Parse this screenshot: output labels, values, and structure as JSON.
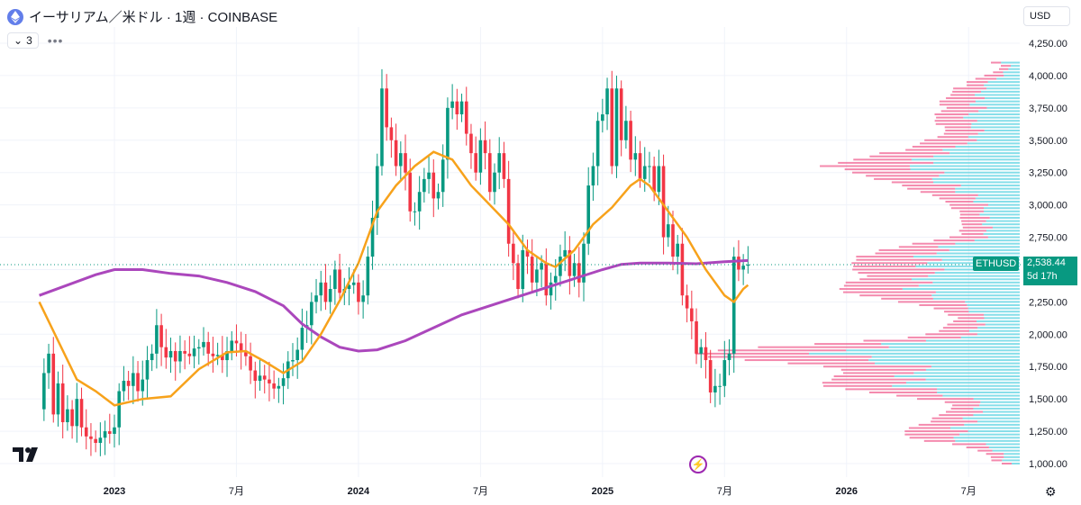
{
  "header": {
    "title": "イーサリアム／米ドル · 1週 · COINBASE",
    "indicator_count": "3",
    "currency": "USD",
    "symbol_tag": "ETHUSD",
    "last_price": "2,538.44",
    "countdown": "5d 17h"
  },
  "colors": {
    "up": "#089981",
    "down": "#f23645",
    "ma_fast": "#f7a21b",
    "ma_slow": "#ab47bc",
    "vp_up": "#5dd3e2",
    "vp_down": "#f06292"
  },
  "chart_data": {
    "type": "candlestick",
    "y_ticks": [
      "4,250.00",
      "4,000.00",
      "3,750.00",
      "3,500.00",
      "3,250.00",
      "3,000.00",
      "2,750.00",
      "2,500.00",
      "2,250.00",
      "2,000.00",
      "1,750.00",
      "1,500.00",
      "1,250.00",
      "1,000.00"
    ],
    "y_tick_values": [
      4250,
      4000,
      3750,
      3500,
      3250,
      3000,
      2750,
      2500,
      2250,
      2000,
      1750,
      1500,
      1250,
      1000
    ],
    "x_ticks": [
      {
        "label": "2023",
        "w": 0
      },
      {
        "label": "7月",
        "w": 26
      },
      {
        "label": "2024",
        "w": 52
      },
      {
        "label": "7月",
        "w": 78
      },
      {
        "label": "2025",
        "w": 104
      },
      {
        "label": "7月",
        "w": 130
      },
      {
        "label": "2026",
        "w": 156
      },
      {
        "label": "7月",
        "w": 182
      }
    ],
    "last_price": 2538.44,
    "candles_anchor": [
      [
        -16,
        1420
      ],
      [
        -15,
        1700
      ],
      [
        -14,
        1850
      ],
      [
        -13,
        1380
      ],
      [
        -12,
        1620
      ],
      [
        -11,
        1320
      ],
      [
        -10,
        1420
      ],
      [
        -9,
        1290
      ],
      [
        -8,
        1500
      ],
      [
        -7,
        1280
      ],
      [
        -6,
        1210
      ],
      [
        -5,
        1190
      ],
      [
        -4,
        1160
      ],
      [
        -3,
        1200
      ],
      [
        -2,
        1250
      ],
      [
        -1,
        1230
      ],
      [
        0,
        1280
      ],
      [
        1,
        1560
      ],
      [
        2,
        1640
      ],
      [
        3,
        1600
      ],
      [
        4,
        1700
      ],
      [
        5,
        1560
      ],
      [
        6,
        1650
      ],
      [
        7,
        1800
      ],
      [
        8,
        1850
      ],
      [
        9,
        2070
      ],
      [
        10,
        1900
      ],
      [
        11,
        1820
      ],
      [
        12,
        1870
      ],
      [
        13,
        1790
      ],
      [
        14,
        1870
      ],
      [
        15,
        1850
      ],
      [
        16,
        1830
      ],
      [
        17,
        1890
      ],
      [
        18,
        1900
      ],
      [
        19,
        1940
      ],
      [
        20,
        1850
      ],
      [
        21,
        1830
      ],
      [
        22,
        1840
      ],
      [
        23,
        1800
      ],
      [
        24,
        1870
      ],
      [
        25,
        1950
      ],
      [
        26,
        1930
      ],
      [
        27,
        1860
      ],
      [
        28,
        1830
      ],
      [
        29,
        1720
      ],
      [
        30,
        1640
      ],
      [
        31,
        1680
      ],
      [
        32,
        1650
      ],
      [
        33,
        1620
      ],
      [
        34,
        1580
      ],
      [
        35,
        1600
      ],
      [
        36,
        1660
      ],
      [
        37,
        1790
      ],
      [
        38,
        1800
      ],
      [
        39,
        1880
      ],
      [
        40,
        2050
      ],
      [
        41,
        2070
      ],
      [
        42,
        2250
      ],
      [
        43,
        2300
      ],
      [
        44,
        2400
      ],
      [
        45,
        2250
      ],
      [
        46,
        2350
      ],
      [
        47,
        2500
      ],
      [
        48,
        2320
      ],
      [
        49,
        2350
      ],
      [
        50,
        2380
      ],
      [
        51,
        2400
      ],
      [
        52,
        2250
      ],
      [
        53,
        2300
      ],
      [
        54,
        2600
      ],
      [
        55,
        2900
      ],
      [
        56,
        3300
      ],
      [
        57,
        3900
      ],
      [
        58,
        3600
      ],
      [
        59,
        3500
      ],
      [
        60,
        3300
      ],
      [
        61,
        3400
      ],
      [
        62,
        3250
      ],
      [
        63,
        2950
      ],
      [
        64,
        2950
      ],
      [
        65,
        3100
      ],
      [
        66,
        3200
      ],
      [
        67,
        3250
      ],
      [
        68,
        3050
      ],
      [
        69,
        3100
      ],
      [
        70,
        3350
      ],
      [
        71,
        3750
      ],
      [
        72,
        3800
      ],
      [
        73,
        3700
      ],
      [
        74,
        3800
      ],
      [
        75,
        3550
      ],
      [
        76,
        3400
      ],
      [
        77,
        3250
      ],
      [
        78,
        3500
      ],
      [
        79,
        3400
      ],
      [
        80,
        3100
      ],
      [
        81,
        3250
      ],
      [
        82,
        3400
      ],
      [
        83,
        3200
      ],
      [
        84,
        2700
      ],
      [
        85,
        2550
      ],
      [
        86,
        2350
      ],
      [
        87,
        2650
      ],
      [
        88,
        2600
      ],
      [
        89,
        2400
      ],
      [
        90,
        2500
      ],
      [
        91,
        2550
      ],
      [
        92,
        2300
      ],
      [
        93,
        2400
      ],
      [
        94,
        2450
      ],
      [
        95,
        2600
      ],
      [
        96,
        2650
      ],
      [
        97,
        2450
      ],
      [
        98,
        2550
      ],
      [
        99,
        2400
      ],
      [
        100,
        2700
      ],
      [
        101,
        3150
      ],
      [
        102,
        3300
      ],
      [
        103,
        3650
      ],
      [
        104,
        3700
      ],
      [
        105,
        3900
      ],
      [
        106,
        3300
      ],
      [
        107,
        3900
      ],
      [
        108,
        3500
      ],
      [
        109,
        3650
      ],
      [
        110,
        3350
      ],
      [
        111,
        3400
      ],
      [
        112,
        3200
      ],
      [
        113,
        3300
      ],
      [
        114,
        3300
      ],
      [
        115,
        3100
      ],
      [
        116,
        3300
      ],
      [
        117,
        2750
      ],
      [
        118,
        2850
      ],
      [
        119,
        2600
      ],
      [
        120,
        2700
      ],
      [
        121,
        2300
      ],
      [
        122,
        2200
      ],
      [
        123,
        2100
      ],
      [
        124,
        1850
      ],
      [
        125,
        1900
      ],
      [
        126,
        1800
      ],
      [
        127,
        1550
      ],
      [
        128,
        1600
      ],
      [
        129,
        1600
      ],
      [
        130,
        1800
      ],
      [
        131,
        1850
      ],
      [
        132,
        2600
      ],
      [
        133,
        2500
      ],
      [
        134,
        2530
      ],
      [
        135,
        2538.44
      ]
    ],
    "ma_fast": [
      [
        -16,
        2250
      ],
      [
        -8,
        1650
      ],
      [
        -4,
        1560
      ],
      [
        0,
        1450
      ],
      [
        6,
        1500
      ],
      [
        12,
        1520
      ],
      [
        18,
        1730
      ],
      [
        24,
        1860
      ],
      [
        28,
        1870
      ],
      [
        32,
        1790
      ],
      [
        36,
        1700
      ],
      [
        40,
        1790
      ],
      [
        44,
        2000
      ],
      [
        48,
        2260
      ],
      [
        52,
        2550
      ],
      [
        56,
        2950
      ],
      [
        60,
        3150
      ],
      [
        64,
        3300
      ],
      [
        68,
        3410
      ],
      [
        72,
        3350
      ],
      [
        76,
        3150
      ],
      [
        80,
        3000
      ],
      [
        84,
        2850
      ],
      [
        88,
        2650
      ],
      [
        92,
        2550
      ],
      [
        94,
        2520
      ],
      [
        98,
        2650
      ],
      [
        102,
        2850
      ],
      [
        106,
        2980
      ],
      [
        110,
        3150
      ],
      [
        112,
        3200
      ],
      [
        114,
        3150
      ],
      [
        118,
        2950
      ],
      [
        122,
        2750
      ],
      [
        126,
        2500
      ],
      [
        130,
        2300
      ],
      [
        132,
        2250
      ],
      [
        134,
        2350
      ],
      [
        135,
        2380
      ]
    ],
    "ma_slow": [
      [
        -16,
        2300
      ],
      [
        -10,
        2380
      ],
      [
        -4,
        2460
      ],
      [
        0,
        2500
      ],
      [
        6,
        2500
      ],
      [
        12,
        2470
      ],
      [
        18,
        2450
      ],
      [
        24,
        2400
      ],
      [
        30,
        2330
      ],
      [
        36,
        2220
      ],
      [
        40,
        2080
      ],
      [
        44,
        1980
      ],
      [
        48,
        1900
      ],
      [
        52,
        1870
      ],
      [
        56,
        1880
      ],
      [
        62,
        1950
      ],
      [
        68,
        2050
      ],
      [
        74,
        2150
      ],
      [
        80,
        2220
      ],
      [
        86,
        2290
      ],
      [
        92,
        2360
      ],
      [
        98,
        2430
      ],
      [
        104,
        2500
      ],
      [
        108,
        2540
      ],
      [
        112,
        2550
      ],
      [
        118,
        2550
      ],
      [
        124,
        2545
      ],
      [
        130,
        2560
      ],
      [
        135,
        2570
      ]
    ],
    "volume_profile_note": "horizontal volume-at-price histogram on right side"
  }
}
